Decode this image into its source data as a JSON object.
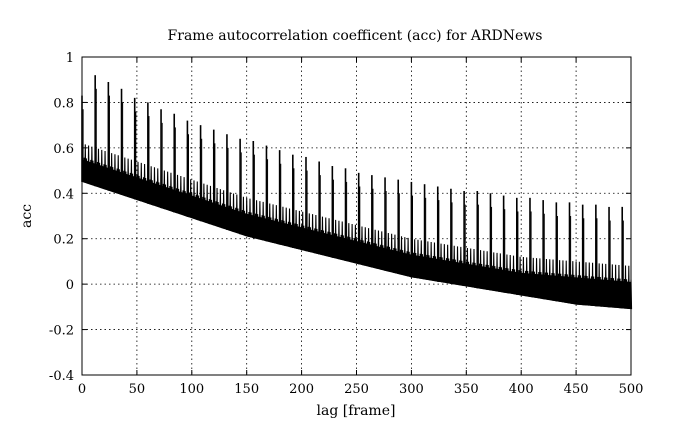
{
  "chart_data": {
    "type": "line",
    "title": "Frame autocorrelation coefficent (acc) for ARDNews",
    "xlabel": "lag [frame]",
    "ylabel": "acc",
    "xlim": [
      0,
      500
    ],
    "ylim": [
      -0.4,
      1
    ],
    "xticks": [
      0,
      50,
      100,
      150,
      200,
      250,
      300,
      350,
      400,
      450,
      500
    ],
    "yticks": [
      1,
      0.8,
      0.6,
      0.4,
      0.2,
      0,
      -0.2,
      -0.4
    ],
    "xtick_labels": [
      "0",
      "50",
      "100",
      "150",
      "200",
      "250",
      "300",
      "350",
      "400",
      "450",
      "500"
    ],
    "ytick_labels": [
      "1",
      "0.8",
      "0.6",
      "0.4",
      "0.2",
      "0",
      "-0.2",
      "-0.4"
    ],
    "grid": true,
    "line_color": "#000000",
    "series": [
      {
        "x": [
          0,
          12,
          24,
          36,
          48,
          60,
          72,
          84,
          96,
          108,
          120,
          132,
          144,
          156,
          168,
          180,
          192,
          204,
          216,
          228,
          240,
          252,
          264,
          276,
          288,
          300,
          312,
          324,
          336,
          348,
          360,
          372,
          384,
          396,
          408,
          420,
          432,
          444,
          456,
          468,
          480,
          492
        ],
        "y": [
          0.83,
          0.92,
          0.89,
          0.86,
          0.82,
          0.8,
          0.77,
          0.75,
          0.72,
          0.7,
          0.68,
          0.66,
          0.64,
          0.63,
          0.61,
          0.59,
          0.57,
          0.56,
          0.54,
          0.52,
          0.51,
          0.49,
          0.48,
          0.47,
          0.46,
          0.45,
          0.44,
          0.43,
          0.42,
          0.41,
          0.41,
          0.4,
          0.39,
          0.38,
          0.38,
          0.37,
          0.36,
          0.36,
          0.35,
          0.35,
          0.34,
          0.34
        ]
      },
      {
        "x": [
          0,
          25,
          50,
          75,
          100,
          125,
          150,
          175,
          200,
          225,
          250,
          275,
          300,
          325,
          350,
          375,
          400,
          425,
          450,
          475,
          500
        ],
        "y": [
          0.62,
          0.58,
          0.54,
          0.5,
          0.46,
          0.42,
          0.38,
          0.35,
          0.32,
          0.29,
          0.26,
          0.23,
          0.2,
          0.18,
          0.16,
          0.14,
          0.12,
          0.11,
          0.1,
          0.09,
          0.08
        ]
      },
      {
        "x": [
          0,
          25,
          50,
          75,
          100,
          125,
          150,
          175,
          200,
          225,
          250,
          275,
          300,
          325,
          350,
          375,
          400,
          425,
          450,
          475,
          500
        ],
        "y": [
          0.45,
          0.41,
          0.37,
          0.33,
          0.29,
          0.25,
          0.21,
          0.18,
          0.15,
          0.12,
          0.09,
          0.06,
          0.03,
          0.01,
          -0.01,
          -0.03,
          -0.05,
          -0.07,
          -0.09,
          -0.1,
          -0.11
        ]
      }
    ]
  }
}
